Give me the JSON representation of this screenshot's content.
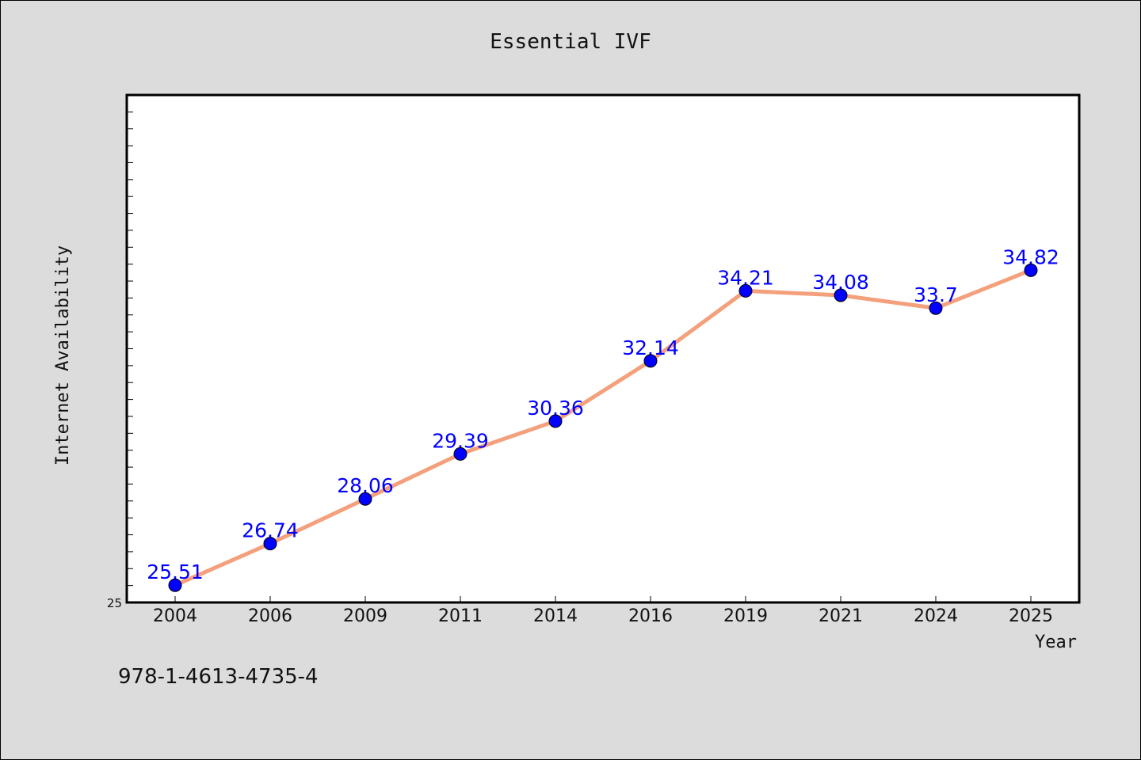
{
  "chart_data": {
    "type": "line",
    "title": "Essential IVF",
    "xlabel": "Year",
    "ylabel": "Internet Availability",
    "categories": [
      "2004",
      "2006",
      "2009",
      "2011",
      "2014",
      "2016",
      "2019",
      "2021",
      "2024",
      "2025"
    ],
    "series": [
      {
        "values": [
          25.51,
          26.74,
          28.06,
          29.39,
          30.36,
          32.14,
          34.21,
          34.08,
          33.7,
          34.82
        ],
        "line_color": "#f4a07c",
        "marker_color": "#0000ff"
      }
    ],
    "data_labels": [
      "25.51",
      "26.74",
      "28.06",
      "29.39",
      "30.36",
      "32.14",
      "34.21",
      "34.08",
      "33.7",
      "34.82"
    ],
    "ylim": [
      25,
      40
    ],
    "y_tick_labels": [
      "25"
    ],
    "grid": false,
    "legend": "none"
  },
  "footer_text": "978-1-4613-4735-4",
  "colors": {
    "background": "#dcdcdc",
    "plot_background": "#ffffff",
    "line": "#f4a07c",
    "marker": "#0000ff",
    "data_label": "#0000ff"
  }
}
